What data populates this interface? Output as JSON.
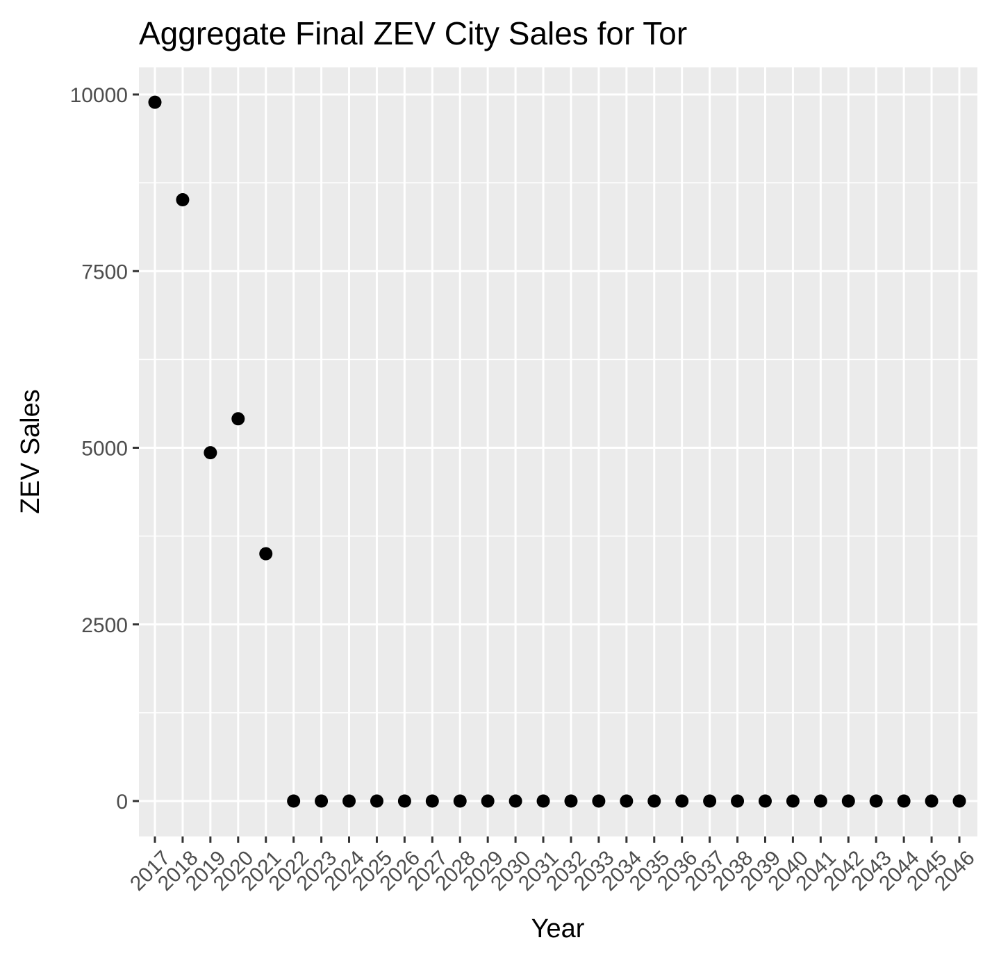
{
  "chart_data": {
    "type": "scatter",
    "title": "Aggregate Final ZEV City Sales for Tor",
    "xlabel": "Year",
    "ylabel": "ZEV Sales",
    "x": [
      "2017",
      "2018",
      "2019",
      "2020",
      "2021",
      "2022",
      "2023",
      "2024",
      "2025",
      "2026",
      "2027",
      "2028",
      "2029",
      "2030",
      "2031",
      "2032",
      "2033",
      "2034",
      "2035",
      "2036",
      "2037",
      "2038",
      "2039",
      "2040",
      "2041",
      "2042",
      "2043",
      "2044",
      "2045",
      "2046"
    ],
    "values": [
      9890,
      8510,
      4930,
      5410,
      3500,
      0,
      0,
      0,
      0,
      0,
      0,
      0,
      0,
      0,
      0,
      0,
      0,
      0,
      0,
      0,
      0,
      0,
      0,
      0,
      0,
      0,
      0,
      0,
      0,
      0
    ],
    "y_ticks": [
      0,
      2500,
      5000,
      7500,
      10000
    ],
    "y_tick_labels": [
      "0",
      "2500",
      "5000",
      "7500",
      "10000"
    ],
    "ylim": [
      -500,
      10400
    ],
    "grid": true,
    "legend": "none",
    "colors": {
      "panel": "#ebebeb",
      "grid": "#ffffff",
      "point": "#000000",
      "tick_text": "#4d4d4d"
    }
  }
}
